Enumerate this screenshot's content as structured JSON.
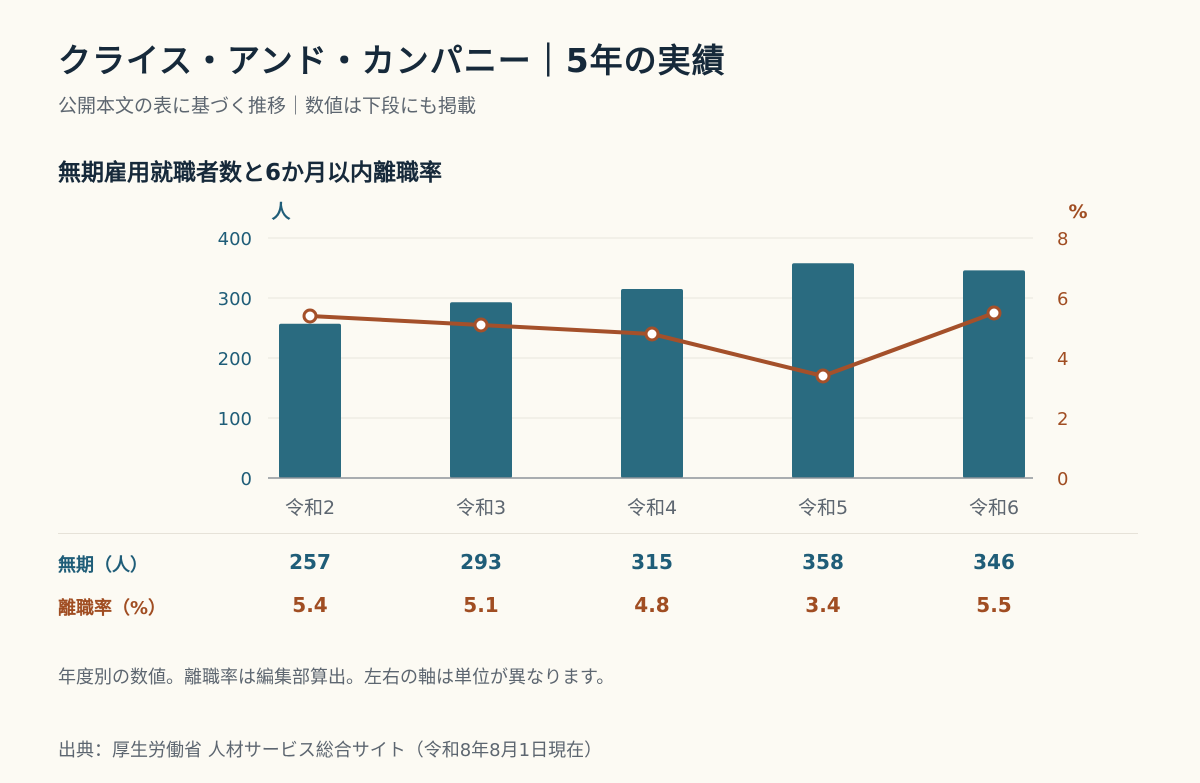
{
  "header": {
    "title": "クライス・アンド・カンパニー｜5年の実績",
    "subtitle": "公開本文の表に基づく推移｜数値は下段にも掲載"
  },
  "chart_data": {
    "type": "bar",
    "title": "無期雇用就職者数と6か月以内離職率",
    "categories": [
      "令和2",
      "令和3",
      "令和4",
      "令和5",
      "令和6"
    ],
    "series": [
      {
        "name": "無期（人）",
        "type": "bar",
        "axis": "left",
        "unit": "人",
        "values": [
          257,
          293,
          315,
          358,
          346
        ],
        "color": "#2a6b80"
      },
      {
        "name": "離職率（%）",
        "type": "line",
        "axis": "right",
        "unit": "%",
        "values": [
          5.4,
          5.1,
          4.8,
          3.4,
          5.5
        ],
        "color": "#a4502a"
      }
    ],
    "y_left": {
      "label": "人",
      "range": [
        0,
        400
      ],
      "ticks": [
        "0",
        "100",
        "200",
        "300",
        "400"
      ]
    },
    "y_right": {
      "label": "%",
      "range": [
        0,
        8
      ],
      "ticks": [
        "0",
        "2",
        "4",
        "6",
        "8"
      ]
    },
    "grid": true
  },
  "table": {
    "rows": [
      {
        "label": "無期（人）",
        "values": [
          "257",
          "293",
          "315",
          "358",
          "346"
        ]
      },
      {
        "label": "離職率（%）",
        "values": [
          "5.4",
          "5.1",
          "4.8",
          "3.4",
          "5.5"
        ]
      }
    ]
  },
  "footer": {
    "note": "年度別の数値。離職率は編集部算出。左右の軸は単位が異なります。",
    "source": "出典：厚生労働省 人材サービス総合サイト（令和8年8月1日現在）"
  },
  "colors": {
    "bar": "#2a6b80",
    "line": "#a4502a",
    "left_axis_text": "#1f5d78",
    "right_axis_text": "#a04d22",
    "grid": "#e9e6de",
    "background": "#fcfaf3"
  }
}
